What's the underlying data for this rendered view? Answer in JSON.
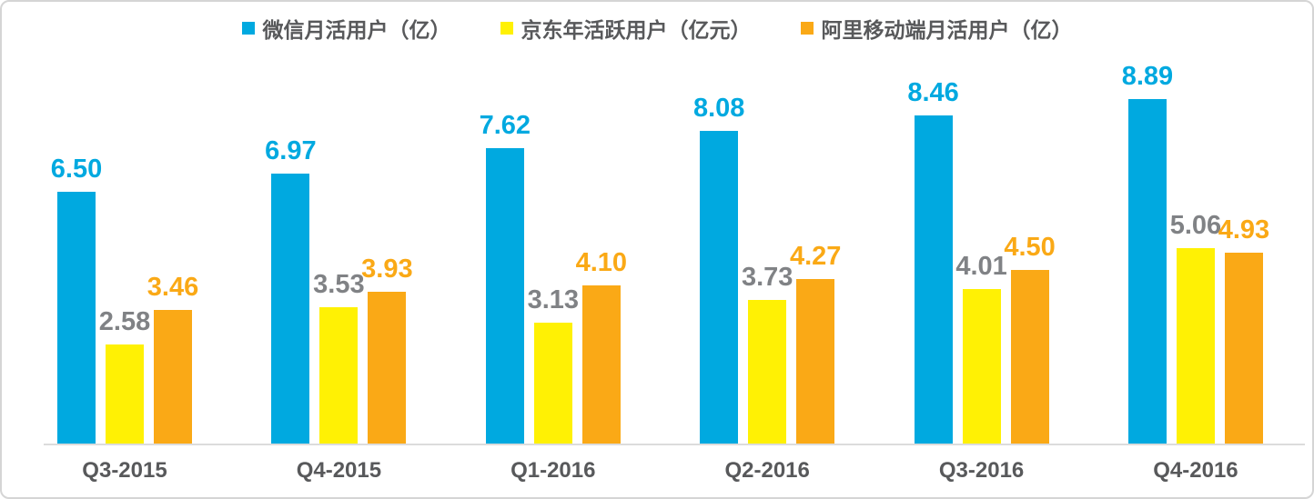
{
  "chart_data": {
    "type": "bar",
    "title": "",
    "categories": [
      "Q3-2015",
      "Q4-2015",
      "Q1-2016",
      "Q2-2016",
      "Q3-2016",
      "Q4-2016"
    ],
    "series": [
      {
        "name": "微信月活用户（亿）",
        "color": "#00a9e0",
        "label_color": "#00a9e0",
        "values": [
          6.5,
          6.97,
          7.62,
          8.08,
          8.46,
          8.89
        ]
      },
      {
        "name": "京东年活跃用户（亿元）",
        "color": "#fff104",
        "label_color": "#808285",
        "values": [
          2.58,
          3.53,
          3.13,
          3.73,
          4.01,
          5.06
        ]
      },
      {
        "name": "阿里移动端月活用户（亿）",
        "color": "#faa916",
        "label_color": "#faa916",
        "values": [
          3.46,
          3.93,
          4.1,
          4.27,
          4.5,
          4.93
        ]
      }
    ],
    "value_label_decimals": 2,
    "xlabel": "",
    "ylabel": "",
    "ylim": [
      0,
      10
    ],
    "grid": false,
    "legend_position": "top",
    "axis_line_color": "#dcdcdc",
    "category_label_color": "#58595b",
    "legend_text_color": "#58595b"
  }
}
